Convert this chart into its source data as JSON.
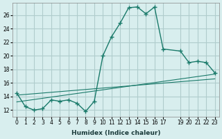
{
  "xlabel": "Humidex (Indice chaleur)",
  "bg_color": "#d8eeee",
  "grid_color": "#b0cccc",
  "line_color": "#1a7a6a",
  "xlim": [
    -0.5,
    23.5
  ],
  "ylim": [
    11.0,
    27.8
  ],
  "yticks": [
    12,
    14,
    16,
    18,
    20,
    22,
    24,
    26
  ],
  "xticks": [
    0,
    1,
    2,
    3,
    4,
    5,
    6,
    7,
    8,
    9,
    10,
    11,
    12,
    13,
    14,
    15,
    16,
    17,
    19,
    20,
    21,
    22,
    23
  ],
  "xtick_labels": [
    "0",
    "1",
    "2",
    "3",
    "4",
    "5",
    "6",
    "7",
    "8",
    "9",
    "10",
    "11",
    "12",
    "13",
    "14",
    "15",
    "16",
    "17",
    "19",
    "20",
    "21",
    "22",
    "23"
  ],
  "main_x": [
    0,
    1,
    2,
    3,
    4,
    5,
    6,
    7,
    8,
    9,
    10,
    11,
    12,
    13,
    14,
    15,
    16,
    17,
    19,
    20,
    21,
    22,
    23
  ],
  "main_y": [
    14.5,
    12.5,
    12.0,
    12.2,
    13.5,
    13.3,
    13.5,
    13.0,
    11.8,
    13.3,
    20.0,
    22.8,
    24.8,
    27.1,
    27.2,
    26.2,
    27.2,
    21.0,
    20.7,
    19.0,
    19.2,
    19.0,
    17.5
  ],
  "trend1_x": [
    0,
    23
  ],
  "trend1_y": [
    13.2,
    17.3
  ],
  "trend2_x": [
    0,
    23
  ],
  "trend2_y": [
    14.2,
    16.6
  ]
}
